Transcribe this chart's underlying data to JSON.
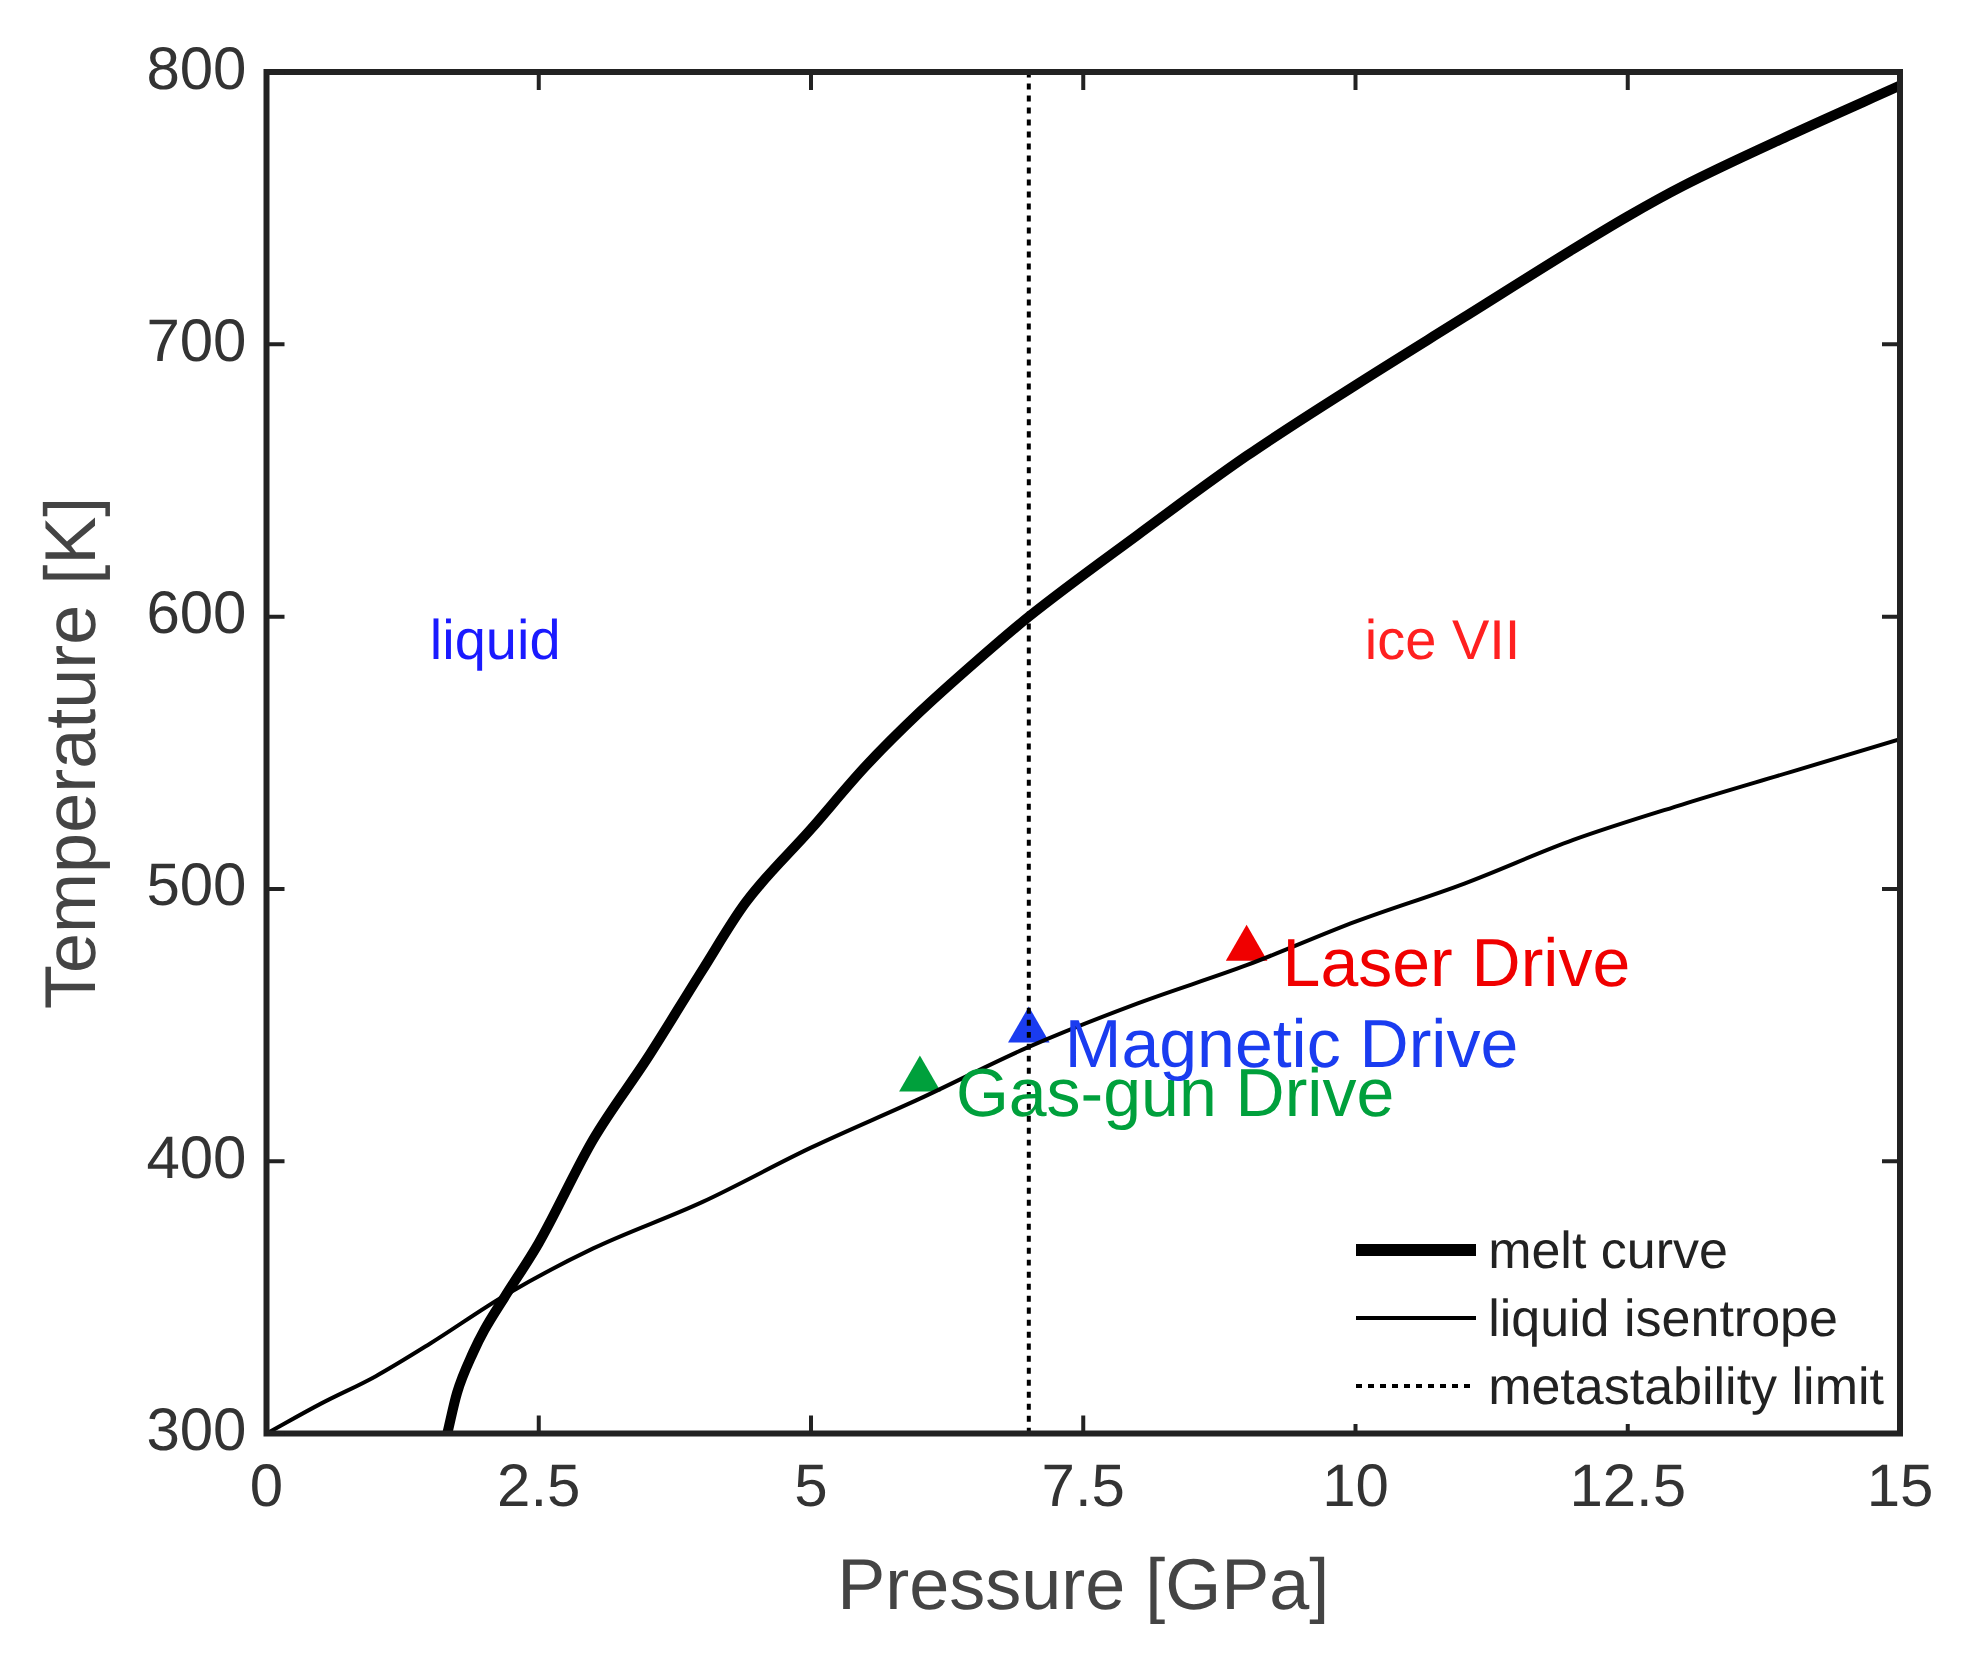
{
  "chart_data": {
    "type": "line",
    "xlabel": "Pressure [GPa]",
    "ylabel": "Temperature [K]",
    "xlim": [
      0,
      15
    ],
    "xticks": [
      0,
      2.5,
      5,
      7.5,
      10,
      12.5,
      15
    ],
    "ylim": [
      300,
      800
    ],
    "yticks": [
      300,
      400,
      500,
      600,
      700,
      800
    ],
    "grid": false,
    "legend": "bottom right",
    "series": [
      {
        "name": "melt curve",
        "color": "#000000",
        "line_style": "solid",
        "x": [
          1.66,
          1.75,
          1.9,
          2.0,
          2.2,
          2.5,
          3,
          3.5,
          4,
          4.4,
          5,
          5.5,
          6,
          6.5,
          7,
          8,
          9,
          10,
          11,
          12,
          12.5,
          13,
          14,
          15
        ],
        "values": [
          300,
          315,
          330,
          338,
          351,
          370,
          408,
          438,
          470,
          495,
          522,
          545,
          565,
          583,
          600,
          630,
          659,
          685,
          710,
          735,
          747,
          758,
          777,
          795
        ]
      },
      {
        "name": "liquid isentrope",
        "color": "#000000",
        "line_style": "solid",
        "x": [
          0,
          0.5,
          1,
          1.5,
          2.2,
          3,
          4,
          5,
          6,
          7,
          8,
          9,
          10,
          11,
          12,
          13,
          14,
          15
        ],
        "values": [
          300,
          311,
          321,
          333,
          351,
          368,
          385,
          405,
          423,
          442,
          458,
          472,
          488,
          502,
          518,
          531,
          543,
          555
        ]
      },
      {
        "name": "metastability limit",
        "color": "#000000",
        "line_style": "dotted",
        "x": [
          7,
          7
        ],
        "values": [
          300,
          800
        ]
      },
      {
        "type": "scatter",
        "marker": "triangle",
        "x": [
          6,
          7,
          9
        ],
        "values": [
          430,
          448,
          478
        ],
        "colors": [
          "#00a03c",
          "#1a3cf0",
          "#f00000"
        ]
      }
    ],
    "annotations": [
      {
        "text": "Gas-gun Drive",
        "x": 6,
        "y": 430
      },
      {
        "text": "Magnetic Drive",
        "x": 7,
        "y": 448
      },
      {
        "text": "Laser Drive",
        "x": 9,
        "y": 478
      },
      "liquid",
      "ice VII"
    ]
  }
}
